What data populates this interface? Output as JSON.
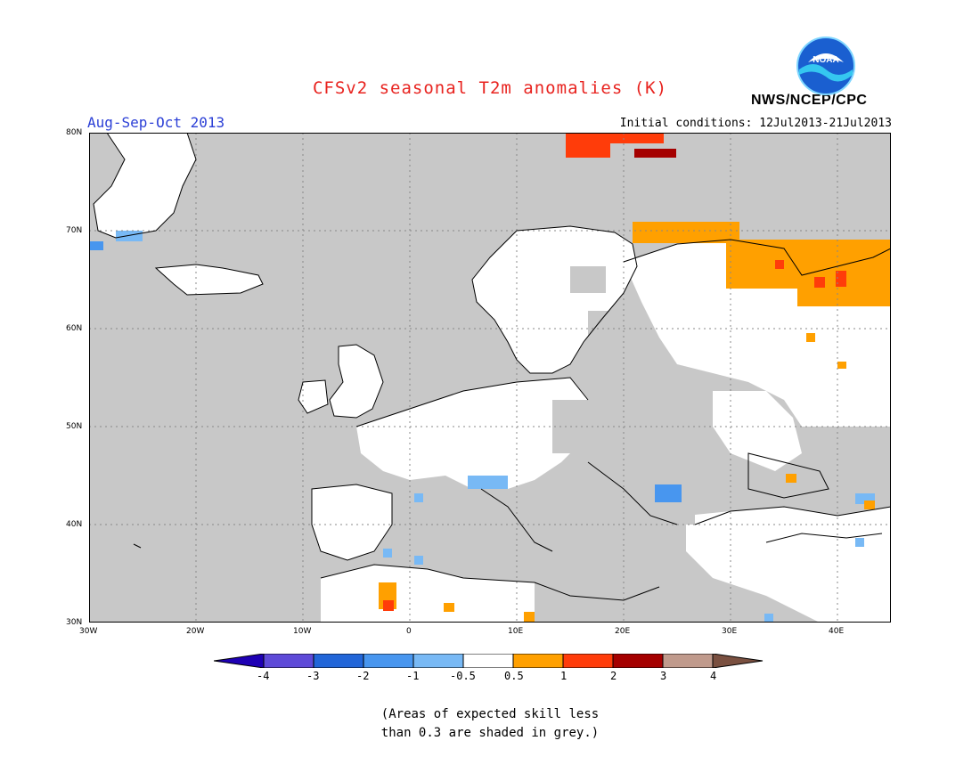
{
  "header": {
    "title": "CFSv2 seasonal T2m anomalies (K)",
    "period": "Aug-Sep-Oct 2013",
    "initial_conditions": "Initial conditions: 12Jul2013-21Jul2013",
    "agency": "NWS/NCEP/CPC",
    "logo_text": "NOAA"
  },
  "map": {
    "region": "Europe",
    "lat_labels": [
      "80N",
      "70N",
      "60N",
      "50N",
      "40N",
      "30N"
    ],
    "lon_labels": [
      "30W",
      "20W",
      "10W",
      "0",
      "10E",
      "20E",
      "30E",
      "40E"
    ],
    "colors": {
      "grey_low_skill": "#c8c8c8",
      "neutral": "#ffffff",
      "cool_light": "#78b9f5",
      "cool": "#4896ef",
      "warm_light": "#ffa000",
      "warm": "#ff3c0a",
      "warm_strong": "#a50000"
    }
  },
  "colorbar": {
    "labels": [
      "-4",
      "-3",
      "-2",
      "-1",
      "-0.5",
      "0.5",
      "1",
      "2",
      "3",
      "4"
    ],
    "colors": [
      "#1e00b4",
      "#5e4ad8",
      "#2266d8",
      "#4896ef",
      "#78b9f5",
      "#ffffff",
      "#ffa000",
      "#ff3c0a",
      "#a50000",
      "#c09a8c",
      "#7a5040"
    ]
  },
  "note": {
    "line1": "(Areas of expected skill less",
    "line2": "than 0.3 are shaded in grey.)"
  }
}
